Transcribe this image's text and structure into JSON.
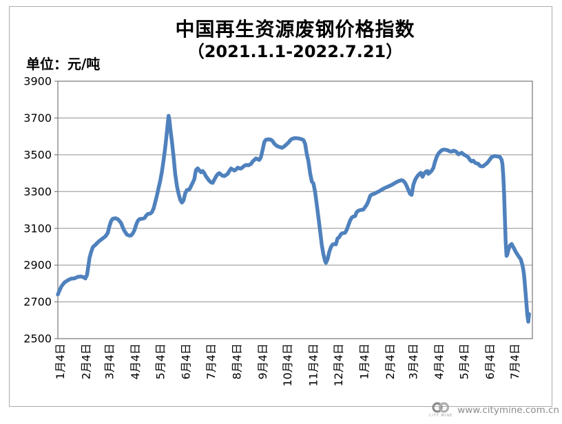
{
  "chart": {
    "title_line1": "中国再生资源废钢价格指数",
    "title_line2": "（2021.1.1-2022.7.21）",
    "unit_label": "单位：元/吨"
  },
  "watermark": {
    "url_text": "www.citymine.com.cn",
    "logo_caption": "CITY MINE",
    "logo_icon": "two-interlocking-rings",
    "text_color": "#8c8c8c"
  },
  "chart_data": {
    "type": "line",
    "title": "中国再生资源废钢价格指数",
    "subtitle": "（2021.1.1-2022.7.21）",
    "ylabel": "元/吨",
    "xlabel": "",
    "ylim": [
      2500,
      3900
    ],
    "ytick_interval": 200,
    "yticks": [
      2500,
      2700,
      2900,
      3100,
      3300,
      3500,
      3700,
      3900
    ],
    "x_unit": "days_since_2021_01_01",
    "x_domain_days": [
      0,
      570
    ],
    "xtick_labels": [
      "1月4日",
      "2月4日",
      "3月4日",
      "4月4日",
      "5月4日",
      "6月4日",
      "7月4日",
      "8月4日",
      "9月4日",
      "10月4日",
      "11月4日",
      "12月4日",
      "1月4日",
      "2月4日",
      "3月4日",
      "4月4日",
      "5月4日",
      "6月4日",
      "7月4日"
    ],
    "xtick_days": [
      3,
      34,
      62,
      93,
      123,
      154,
      184,
      215,
      246,
      276,
      307,
      337,
      368,
      399,
      427,
      458,
      488,
      519,
      549
    ],
    "grid": "horizontal_only",
    "legend": "none",
    "line_color": "#4F81BD",
    "series": [
      {
        "name": "废钢价格指数",
        "points": [
          [
            0,
            2740
          ],
          [
            2,
            2762
          ],
          [
            4,
            2782
          ],
          [
            6,
            2795
          ],
          [
            8,
            2806
          ],
          [
            10,
            2812
          ],
          [
            13,
            2820
          ],
          [
            16,
            2826
          ],
          [
            20,
            2828
          ],
          [
            24,
            2836
          ],
          [
            28,
            2838
          ],
          [
            31,
            2834
          ],
          [
            33,
            2827
          ],
          [
            35,
            2846
          ],
          [
            36,
            2875
          ],
          [
            37,
            2905
          ],
          [
            38,
            2938
          ],
          [
            40,
            2972
          ],
          [
            42,
            2998
          ],
          [
            45,
            3010
          ],
          [
            49,
            3028
          ],
          [
            53,
            3042
          ],
          [
            57,
            3056
          ],
          [
            60,
            3075
          ],
          [
            62,
            3112
          ],
          [
            64,
            3140
          ],
          [
            66,
            3152
          ],
          [
            69,
            3155
          ],
          [
            72,
            3150
          ],
          [
            74,
            3140
          ],
          [
            76,
            3128
          ],
          [
            78,
            3105
          ],
          [
            80,
            3086
          ],
          [
            83,
            3066
          ],
          [
            86,
            3060
          ],
          [
            88,
            3062
          ],
          [
            90,
            3072
          ],
          [
            92,
            3090
          ],
          [
            94,
            3118
          ],
          [
            96,
            3140
          ],
          [
            98,
            3150
          ],
          [
            101,
            3152
          ],
          [
            104,
            3155
          ],
          [
            106,
            3168
          ],
          [
            108,
            3178
          ],
          [
            111,
            3180
          ],
          [
            113,
            3188
          ],
          [
            115,
            3208
          ],
          [
            117,
            3242
          ],
          [
            119,
            3278
          ],
          [
            121,
            3320
          ],
          [
            123,
            3360
          ],
          [
            125,
            3408
          ],
          [
            127,
            3470
          ],
          [
            129,
            3540
          ],
          [
            131,
            3622
          ],
          [
            132,
            3672
          ],
          [
            133,
            3712
          ],
          [
            134,
            3688
          ],
          [
            135,
            3645
          ],
          [
            137,
            3572
          ],
          [
            139,
            3490
          ],
          [
            141,
            3395
          ],
          [
            143,
            3330
          ],
          [
            145,
            3288
          ],
          [
            147,
            3255
          ],
          [
            149,
            3240
          ],
          [
            151,
            3252
          ],
          [
            153,
            3290
          ],
          [
            155,
            3308
          ],
          [
            158,
            3312
          ],
          [
            160,
            3330
          ],
          [
            162,
            3348
          ],
          [
            164,
            3368
          ],
          [
            165,
            3395
          ],
          [
            166,
            3418
          ],
          [
            168,
            3426
          ],
          [
            170,
            3415
          ],
          [
            172,
            3405
          ],
          [
            174,
            3412
          ],
          [
            176,
            3400
          ],
          [
            178,
            3382
          ],
          [
            180,
            3370
          ],
          [
            182,
            3358
          ],
          [
            184,
            3350
          ],
          [
            186,
            3347
          ],
          [
            188,
            3365
          ],
          [
            190,
            3382
          ],
          [
            192,
            3395
          ],
          [
            194,
            3400
          ],
          [
            196,
            3392
          ],
          [
            198,
            3386
          ],
          [
            200,
            3384
          ],
          [
            202,
            3390
          ],
          [
            204,
            3396
          ],
          [
            206,
            3412
          ],
          [
            208,
            3425
          ],
          [
            210,
            3420
          ],
          [
            212,
            3414
          ],
          [
            214,
            3420
          ],
          [
            216,
            3430
          ],
          [
            218,
            3426
          ],
          [
            220,
            3425
          ],
          [
            222,
            3432
          ],
          [
            224,
            3440
          ],
          [
            226,
            3444
          ],
          [
            229,
            3443
          ],
          [
            232,
            3450
          ],
          [
            234,
            3464
          ],
          [
            236,
            3472
          ],
          [
            238,
            3480
          ],
          [
            240,
            3476
          ],
          [
            242,
            3472
          ],
          [
            244,
            3488
          ],
          [
            246,
            3528
          ],
          [
            248,
            3570
          ],
          [
            250,
            3582
          ],
          [
            253,
            3584
          ],
          [
            256,
            3582
          ],
          [
            258,
            3574
          ],
          [
            260,
            3560
          ],
          [
            263,
            3548
          ],
          [
            266,
            3543
          ],
          [
            269,
            3538
          ],
          [
            271,
            3542
          ],
          [
            273,
            3550
          ],
          [
            275,
            3558
          ],
          [
            277,
            3566
          ],
          [
            279,
            3578
          ],
          [
            281,
            3586
          ],
          [
            284,
            3590
          ],
          [
            287,
            3590
          ],
          [
            290,
            3588
          ],
          [
            293,
            3584
          ],
          [
            295,
            3580
          ],
          [
            297,
            3560
          ],
          [
            299,
            3505
          ],
          [
            301,
            3465
          ],
          [
            303,
            3400
          ],
          [
            305,
            3355
          ],
          [
            307,
            3344
          ],
          [
            309,
            3298
          ],
          [
            311,
            3230
          ],
          [
            313,
            3160
          ],
          [
            315,
            3085
          ],
          [
            317,
            3010
          ],
          [
            319,
            2958
          ],
          [
            321,
            2922
          ],
          [
            322,
            2912
          ],
          [
            324,
            2932
          ],
          [
            326,
            2972
          ],
          [
            328,
            2998
          ],
          [
            330,
            3012
          ],
          [
            332,
            3014
          ],
          [
            334,
            3013
          ],
          [
            336,
            3045
          ],
          [
            338,
            3052
          ],
          [
            340,
            3068
          ],
          [
            342,
            3074
          ],
          [
            345,
            3076
          ],
          [
            347,
            3092
          ],
          [
            349,
            3118
          ],
          [
            351,
            3142
          ],
          [
            353,
            3158
          ],
          [
            355,
            3164
          ],
          [
            357,
            3166
          ],
          [
            359,
            3188
          ],
          [
            361,
            3196
          ],
          [
            364,
            3200
          ],
          [
            367,
            3202
          ],
          [
            369,
            3215
          ],
          [
            371,
            3228
          ],
          [
            373,
            3248
          ],
          [
            375,
            3275
          ],
          [
            377,
            3284
          ],
          [
            380,
            3288
          ],
          [
            383,
            3295
          ],
          [
            386,
            3302
          ],
          [
            389,
            3310
          ],
          [
            392,
            3318
          ],
          [
            395,
            3324
          ],
          [
            398,
            3330
          ],
          [
            401,
            3336
          ],
          [
            404,
            3344
          ],
          [
            407,
            3352
          ],
          [
            410,
            3358
          ],
          [
            413,
            3362
          ],
          [
            415,
            3358
          ],
          [
            417,
            3348
          ],
          [
            419,
            3330
          ],
          [
            421,
            3308
          ],
          [
            423,
            3288
          ],
          [
            425,
            3282
          ],
          [
            427,
            3335
          ],
          [
            429,
            3362
          ],
          [
            431,
            3378
          ],
          [
            433,
            3390
          ],
          [
            435,
            3398
          ],
          [
            436,
            3402
          ],
          [
            438,
            3380
          ],
          [
            440,
            3398
          ],
          [
            442,
            3408
          ],
          [
            444,
            3412
          ],
          [
            445,
            3396
          ],
          [
            447,
            3404
          ],
          [
            449,
            3413
          ],
          [
            451,
            3428
          ],
          [
            453,
            3462
          ],
          [
            455,
            3488
          ],
          [
            457,
            3506
          ],
          [
            459,
            3516
          ],
          [
            461,
            3524
          ],
          [
            463,
            3528
          ],
          [
            465,
            3528
          ],
          [
            467,
            3526
          ],
          [
            469,
            3523
          ],
          [
            471,
            3518
          ],
          [
            473,
            3517
          ],
          [
            475,
            3522
          ],
          [
            477,
            3520
          ],
          [
            479,
            3515
          ],
          [
            481,
            3503
          ],
          [
            483,
            3506
          ],
          [
            485,
            3511
          ],
          [
            487,
            3503
          ],
          [
            489,
            3498
          ],
          [
            491,
            3493
          ],
          [
            493,
            3486
          ],
          [
            495,
            3472
          ],
          [
            497,
            3464
          ],
          [
            499,
            3468
          ],
          [
            501,
            3457
          ],
          [
            503,
            3453
          ],
          [
            505,
            3451
          ],
          [
            507,
            3440
          ],
          [
            509,
            3437
          ],
          [
            511,
            3438
          ],
          [
            513,
            3446
          ],
          [
            515,
            3452
          ],
          [
            517,
            3462
          ],
          [
            519,
            3475
          ],
          [
            521,
            3487
          ],
          [
            523,
            3491
          ],
          [
            525,
            3493
          ],
          [
            527,
            3492
          ],
          [
            529,
            3490
          ],
          [
            531,
            3488
          ],
          [
            533,
            3472
          ],
          [
            534,
            3450
          ],
          [
            535,
            3390
          ],
          [
            536,
            3290
          ],
          [
            537,
            3150
          ],
          [
            538,
            3020
          ],
          [
            539,
            2950
          ],
          [
            540,
            2958
          ],
          [
            541,
            2980
          ],
          [
            543,
            3006
          ],
          [
            545,
            3015
          ],
          [
            546,
            3008
          ],
          [
            548,
            2990
          ],
          [
            550,
            2972
          ],
          [
            552,
            2958
          ],
          [
            554,
            2944
          ],
          [
            556,
            2932
          ],
          [
            558,
            2900
          ],
          [
            559,
            2878
          ],
          [
            560,
            2846
          ],
          [
            561,
            2795
          ],
          [
            562,
            2740
          ],
          [
            563,
            2685
          ],
          [
            564,
            2628
          ],
          [
            565,
            2592
          ],
          [
            566,
            2634
          ]
        ]
      }
    ]
  }
}
